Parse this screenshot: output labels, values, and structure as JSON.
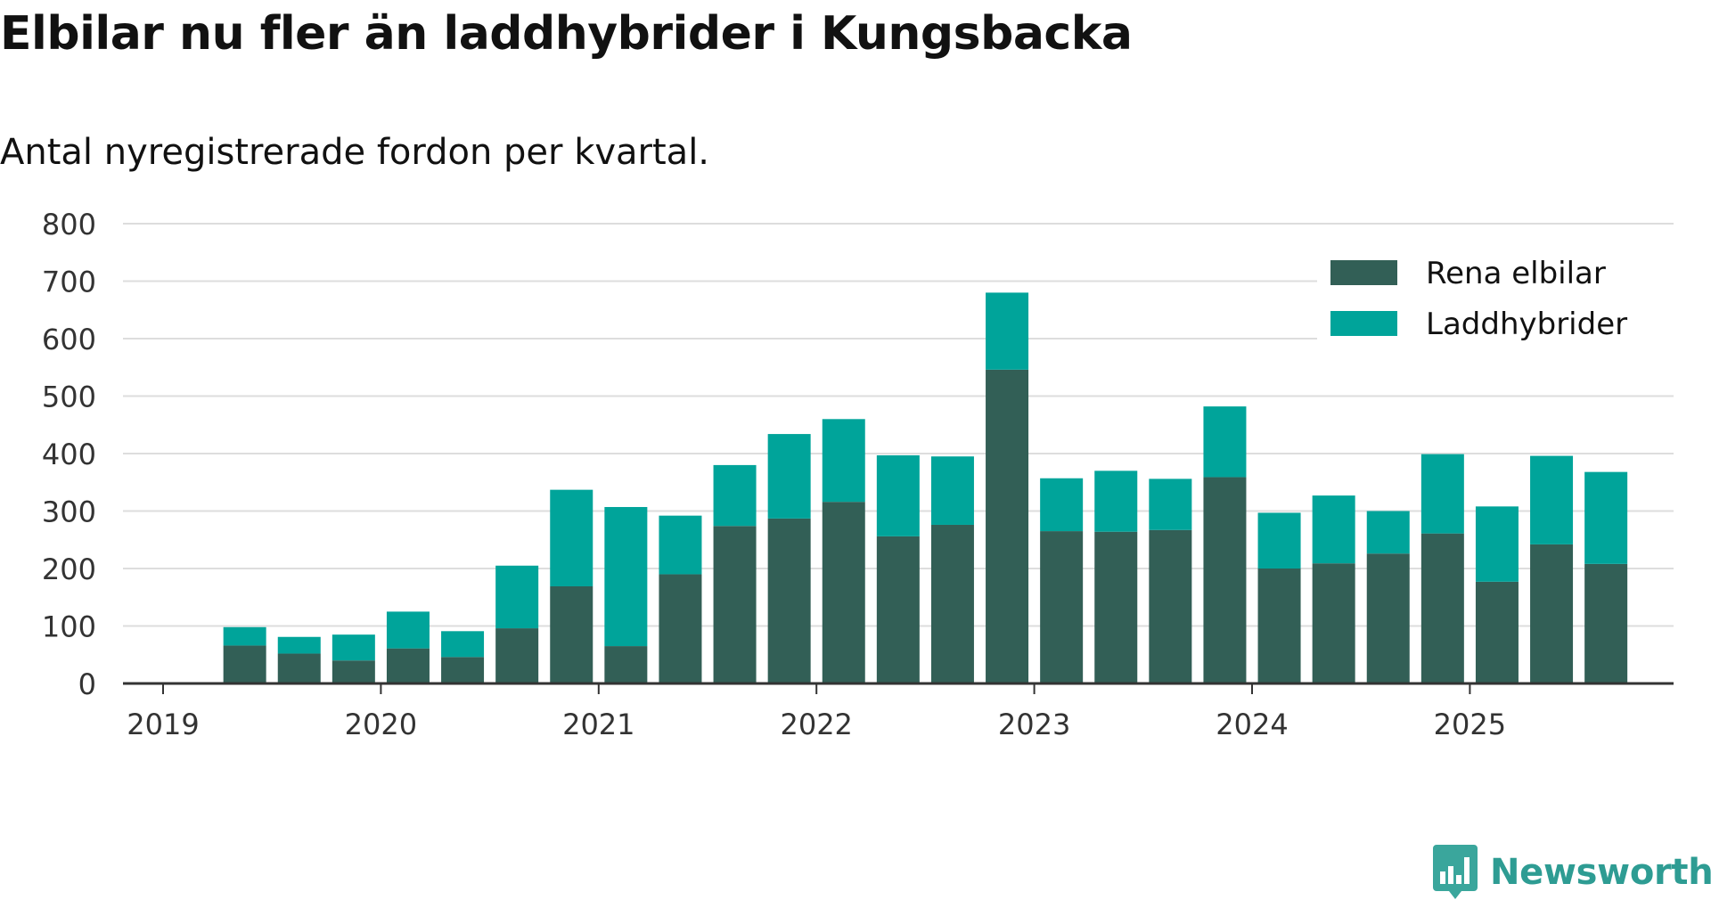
{
  "title": "Elbilar nu fler än laddhybrider i Kungsbacka",
  "subtitle": "Antal nyregistrerade fordon per kvartal.",
  "brand": {
    "name": "Newsworthy",
    "icon": "newsworthy-logo-icon",
    "color": "#2e9c93"
  },
  "chart_data": {
    "type": "bar",
    "stacked": true,
    "categories": [
      "2019 Q2",
      "2019 Q3",
      "2019 Q4",
      "2020 Q1",
      "2020 Q2",
      "2020 Q3",
      "2020 Q4",
      "2021 Q1",
      "2021 Q2",
      "2021 Q3",
      "2021 Q4",
      "2022 Q1",
      "2022 Q2",
      "2022 Q3",
      "2022 Q4",
      "2023 Q1",
      "2023 Q2",
      "2023 Q3",
      "2023 Q4",
      "2024 Q1",
      "2024 Q2",
      "2024 Q3",
      "2024 Q4",
      "2025 Q1",
      "2025 Q2",
      "2025 Q3"
    ],
    "series": [
      {
        "name": "Rena elbilar",
        "color": "#325f56",
        "values": [
          66,
          52,
          40,
          61,
          46,
          96,
          169,
          65,
          190,
          274,
          287,
          316,
          256,
          276,
          546,
          265,
          264,
          267,
          359,
          200,
          209,
          226,
          261,
          177,
          242,
          208
        ]
      },
      {
        "name": "Laddhybrider",
        "color": "#00a49a",
        "values": [
          32,
          29,
          45,
          64,
          45,
          109,
          168,
          242,
          102,
          106,
          147,
          144,
          141,
          119,
          134,
          92,
          106,
          89,
          123,
          97,
          118,
          74,
          138,
          131,
          154,
          160
        ]
      }
    ],
    "x_tick_labels": [
      "2019",
      "2020",
      "2021",
      "2022",
      "2023",
      "2024",
      "2025"
    ],
    "y_ticks": [
      0,
      100,
      200,
      300,
      400,
      500,
      600,
      700,
      800
    ],
    "ylim": [
      0,
      800
    ],
    "xlabel": "",
    "ylabel": "",
    "grid": true,
    "legend_position": "top-right"
  }
}
